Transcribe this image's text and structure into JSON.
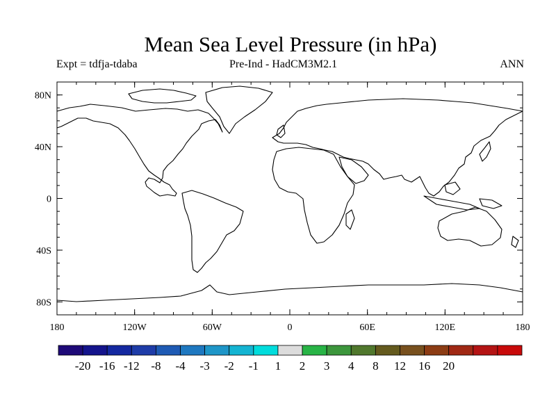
{
  "title": "Mean Sea Level Pressure (in hPa)",
  "subtitle_left": "Expt = tdfja-tdaba",
  "subtitle_center": "Pre-Ind - HadCM3M2.1",
  "subtitle_right": "ANN",
  "map": {
    "projection": "cylindrical equidistant",
    "lon_range": [
      -180,
      180
    ],
    "lat_range": [
      -90,
      90
    ],
    "lat_ticks": [
      {
        "value": 80,
        "label": "80N"
      },
      {
        "value": 40,
        "label": "40N"
      },
      {
        "value": 0,
        "label": "0"
      },
      {
        "value": -40,
        "label": "40S"
      },
      {
        "value": -80,
        "label": "80S"
      }
    ],
    "lon_ticks": [
      {
        "value": -180,
        "label": "180"
      },
      {
        "value": -120,
        "label": "120W"
      },
      {
        "value": -60,
        "label": "60W"
      },
      {
        "value": 0,
        "label": "0"
      },
      {
        "value": 60,
        "label": "60E"
      },
      {
        "value": 120,
        "label": "120E"
      },
      {
        "value": 180,
        "label": "180"
      }
    ],
    "coast_color": "#000000",
    "fill": "none"
  },
  "colorbar": {
    "labels": [
      "-20",
      "-16",
      "-12",
      "-8",
      "-4",
      "-3",
      "-2",
      "-1",
      "1",
      "2",
      "3",
      "4",
      "8",
      "12",
      "16",
      "20"
    ],
    "colors": [
      "#1e0a78",
      "#14148c",
      "#1428a0",
      "#1e3ca8",
      "#1e5ab4",
      "#1e78c0",
      "#1e96c8",
      "#14b4d2",
      "#00dcdc",
      "#dcdcdc",
      "#28b446",
      "#3c963c",
      "#50782d",
      "#645a1e",
      "#78501e",
      "#8c3c14",
      "#a02814",
      "#b41414",
      "#c80a0a"
    ]
  }
}
